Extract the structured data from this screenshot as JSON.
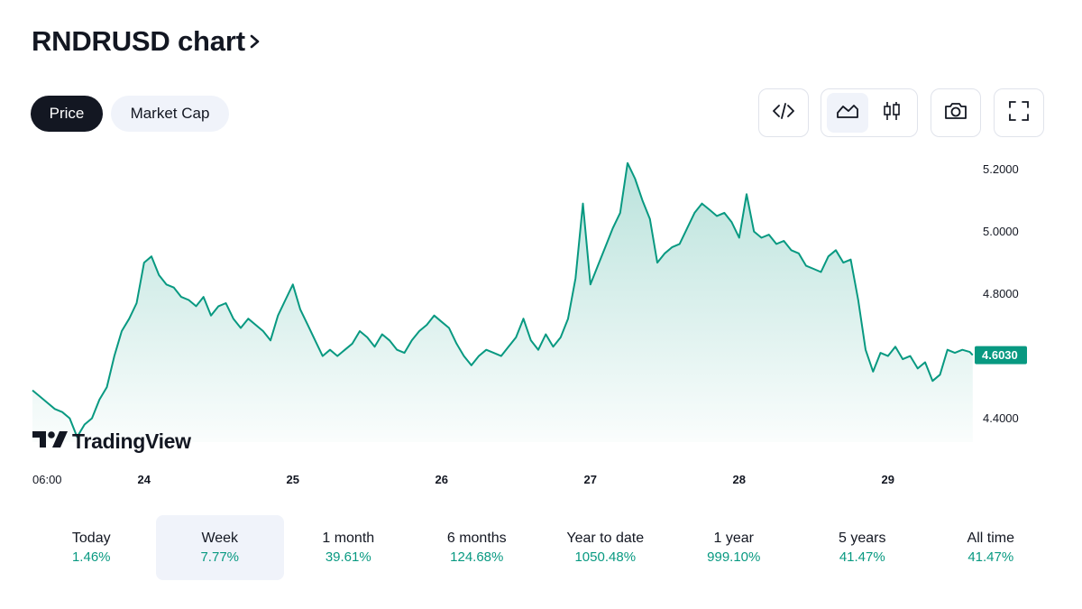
{
  "header": {
    "title": "RNDRUSD chart"
  },
  "tabs": [
    {
      "label": "Price",
      "active": true
    },
    {
      "label": "Market Cap",
      "active": false
    }
  ],
  "toolbar": {
    "icons": [
      "embed-code-icon",
      "area-chart-icon",
      "candlestick-icon",
      "camera-icon",
      "fullscreen-icon"
    ],
    "active_style": "area"
  },
  "branding": {
    "logo_text": "TradingView"
  },
  "colors": {
    "line": "#089981",
    "fill_top": "#089981",
    "label_bg": "#089981",
    "period_change": "#089981"
  },
  "chart_data": {
    "type": "area",
    "symbol": "RNDRUSD",
    "y_ticks": [
      "5.2000",
      "5.0000",
      "4.8000",
      "4.6000",
      "4.4000"
    ],
    "y_tick_values": [
      5.2,
      5.0,
      4.8,
      4.6,
      4.4
    ],
    "ylim": [
      4.28,
      5.28
    ],
    "x_ticks": [
      {
        "label": "06:00",
        "x": 0.0
      },
      {
        "label": "24",
        "x": 0.75
      },
      {
        "label": "25",
        "x": 1.75
      },
      {
        "label": "26",
        "x": 2.75
      },
      {
        "label": "27",
        "x": 3.75
      },
      {
        "label": "28",
        "x": 4.75
      },
      {
        "label": "29",
        "x": 5.75
      }
    ],
    "x_unit": "days from 23 06:00",
    "last_price": "4.6030",
    "series": [
      {
        "values": [
          [
            0.0,
            4.49
          ],
          [
            0.05,
            4.47
          ],
          [
            0.1,
            4.45
          ],
          [
            0.15,
            4.43
          ],
          [
            0.2,
            4.42
          ],
          [
            0.25,
            4.4
          ],
          [
            0.3,
            4.34
          ],
          [
            0.35,
            4.38
          ],
          [
            0.4,
            4.4
          ],
          [
            0.45,
            4.46
          ],
          [
            0.5,
            4.5
          ],
          [
            0.55,
            4.6
          ],
          [
            0.6,
            4.68
          ],
          [
            0.65,
            4.72
          ],
          [
            0.7,
            4.77
          ],
          [
            0.75,
            4.9
          ],
          [
            0.8,
            4.92
          ],
          [
            0.85,
            4.86
          ],
          [
            0.9,
            4.83
          ],
          [
            0.95,
            4.82
          ],
          [
            1.0,
            4.79
          ],
          [
            1.05,
            4.78
          ],
          [
            1.1,
            4.76
          ],
          [
            1.15,
            4.79
          ],
          [
            1.2,
            4.73
          ],
          [
            1.25,
            4.76
          ],
          [
            1.3,
            4.77
          ],
          [
            1.35,
            4.72
          ],
          [
            1.4,
            4.69
          ],
          [
            1.45,
            4.72
          ],
          [
            1.55,
            4.68
          ],
          [
            1.6,
            4.65
          ],
          [
            1.65,
            4.73
          ],
          [
            1.7,
            4.78
          ],
          [
            1.75,
            4.83
          ],
          [
            1.8,
            4.75
          ],
          [
            1.85,
            4.7
          ],
          [
            1.9,
            4.65
          ],
          [
            1.95,
            4.6
          ],
          [
            2.0,
            4.62
          ],
          [
            2.05,
            4.6
          ],
          [
            2.1,
            4.62
          ],
          [
            2.15,
            4.64
          ],
          [
            2.2,
            4.68
          ],
          [
            2.25,
            4.66
          ],
          [
            2.3,
            4.63
          ],
          [
            2.35,
            4.67
          ],
          [
            2.4,
            4.65
          ],
          [
            2.45,
            4.62
          ],
          [
            2.5,
            4.61
          ],
          [
            2.55,
            4.65
          ],
          [
            2.6,
            4.68
          ],
          [
            2.65,
            4.7
          ],
          [
            2.7,
            4.73
          ],
          [
            2.75,
            4.71
          ],
          [
            2.8,
            4.69
          ],
          [
            2.85,
            4.64
          ],
          [
            2.9,
            4.6
          ],
          [
            2.95,
            4.57
          ],
          [
            3.0,
            4.6
          ],
          [
            3.05,
            4.62
          ],
          [
            3.1,
            4.61
          ],
          [
            3.15,
            4.6
          ],
          [
            3.2,
            4.63
          ],
          [
            3.25,
            4.66
          ],
          [
            3.3,
            4.72
          ],
          [
            3.35,
            4.65
          ],
          [
            3.4,
            4.62
          ],
          [
            3.45,
            4.67
          ],
          [
            3.5,
            4.63
          ],
          [
            3.55,
            4.66
          ],
          [
            3.6,
            4.72
          ],
          [
            3.65,
            4.85
          ],
          [
            3.7,
            5.09
          ],
          [
            3.75,
            4.83
          ],
          [
            3.8,
            4.89
          ],
          [
            3.85,
            4.95
          ],
          [
            3.9,
            5.01
          ],
          [
            3.95,
            5.06
          ],
          [
            4.0,
            5.22
          ],
          [
            4.05,
            5.17
          ],
          [
            4.1,
            5.1
          ],
          [
            4.15,
            5.04
          ],
          [
            4.2,
            4.9
          ],
          [
            4.25,
            4.93
          ],
          [
            4.3,
            4.95
          ],
          [
            4.35,
            4.96
          ],
          [
            4.4,
            5.01
          ],
          [
            4.45,
            5.06
          ],
          [
            4.5,
            5.09
          ],
          [
            4.55,
            5.07
          ],
          [
            4.6,
            5.05
          ],
          [
            4.65,
            5.06
          ],
          [
            4.7,
            5.03
          ],
          [
            4.75,
            4.98
          ],
          [
            4.8,
            5.12
          ],
          [
            4.85,
            5.0
          ],
          [
            4.9,
            4.98
          ],
          [
            4.95,
            4.99
          ],
          [
            5.0,
            4.96
          ],
          [
            5.05,
            4.97
          ],
          [
            5.1,
            4.94
          ],
          [
            5.15,
            4.93
          ],
          [
            5.2,
            4.89
          ],
          [
            5.25,
            4.88
          ],
          [
            5.3,
            4.87
          ],
          [
            5.35,
            4.92
          ],
          [
            5.4,
            4.94
          ],
          [
            5.45,
            4.9
          ],
          [
            5.5,
            4.91
          ],
          [
            5.55,
            4.78
          ],
          [
            5.6,
            4.62
          ],
          [
            5.65,
            4.55
          ],
          [
            5.7,
            4.61
          ],
          [
            5.75,
            4.6
          ],
          [
            5.8,
            4.63
          ],
          [
            5.85,
            4.59
          ],
          [
            5.9,
            4.6
          ],
          [
            5.95,
            4.56
          ],
          [
            6.0,
            4.58
          ],
          [
            6.05,
            4.52
          ],
          [
            6.1,
            4.54
          ],
          [
            6.15,
            4.62
          ],
          [
            6.2,
            4.61
          ],
          [
            6.25,
            4.62
          ],
          [
            6.3,
            4.613
          ],
          [
            6.32,
            4.603
          ]
        ]
      }
    ]
  },
  "periods": [
    {
      "label": "Today",
      "value": "1.46%",
      "active": false
    },
    {
      "label": "Week",
      "value": "7.77%",
      "active": true
    },
    {
      "label": "1 month",
      "value": "39.61%",
      "active": false
    },
    {
      "label": "6 months",
      "value": "124.68%",
      "active": false
    },
    {
      "label": "Year to date",
      "value": "1050.48%",
      "active": false
    },
    {
      "label": "1 year",
      "value": "999.10%",
      "active": false
    },
    {
      "label": "5 years",
      "value": "41.47%",
      "active": false
    },
    {
      "label": "All time",
      "value": "41.47%",
      "active": false
    }
  ]
}
